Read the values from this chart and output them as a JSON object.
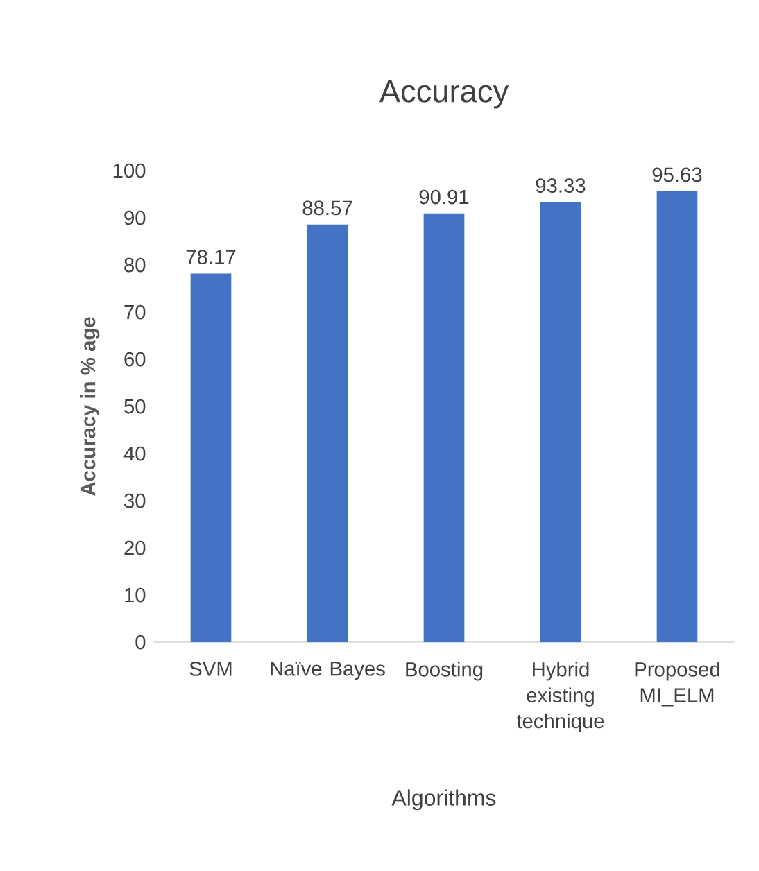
{
  "chart_data": {
    "type": "bar",
    "title": "Accuracy",
    "xlabel": "Algorithms",
    "ylabel": "Accuracy in % age",
    "categories": [
      "SVM",
      "Naïve Bayes",
      "Boosting",
      "Hybrid existing technique",
      "Proposed MI_ELM"
    ],
    "values": [
      78.17,
      88.57,
      90.91,
      93.33,
      95.63
    ],
    "color": "#4472c4",
    "ylim": [
      0,
      100
    ],
    "yticks": [
      0,
      10,
      20,
      30,
      40,
      50,
      60,
      70,
      80,
      90,
      100
    ],
    "data_labels": true
  }
}
